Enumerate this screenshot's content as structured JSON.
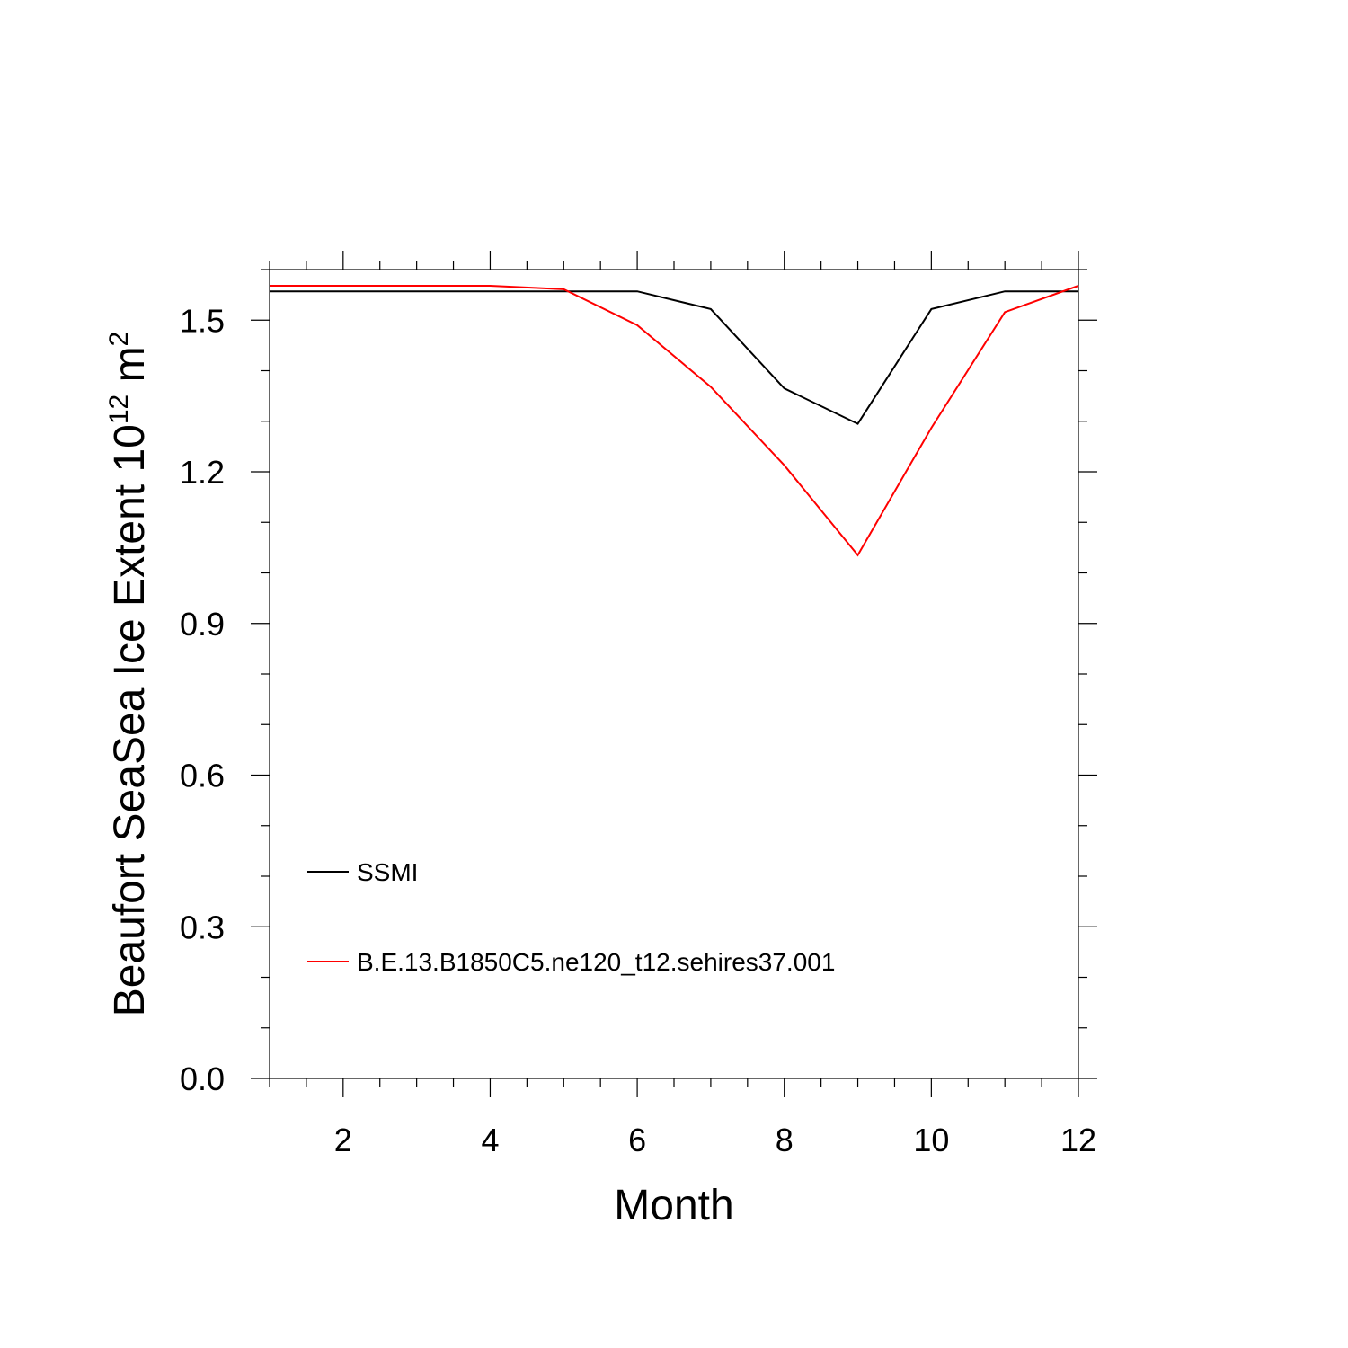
{
  "chart_data": {
    "type": "line",
    "xlabel": "Month",
    "ylabel_prefix": "Beaufort SeaSea Ice Extent 10",
    "ylabel_exponent": "12",
    "ylabel_unit": "m",
    "ylabel_unit_exponent": "2",
    "xlim": [
      1,
      12
    ],
    "ylim": [
      0.0,
      1.6
    ],
    "xticks": [
      2,
      4,
      6,
      8,
      10,
      12
    ],
    "xtick_labels": [
      "2",
      "4",
      "6",
      "8",
      "10",
      "12"
    ],
    "yticks": [
      0.0,
      0.3,
      0.6,
      0.9,
      1.2,
      1.5
    ],
    "ytick_labels": [
      "0.0",
      "0.3",
      "0.6",
      "0.9",
      "1.2",
      "1.5"
    ],
    "x": [
      1,
      2,
      3,
      4,
      5,
      6,
      7,
      8,
      9,
      10,
      11,
      12
    ],
    "series": [
      {
        "name": "SSMI",
        "color": "#000000",
        "values": [
          1.557,
          1.557,
          1.557,
          1.557,
          1.557,
          1.557,
          1.522,
          1.365,
          1.295,
          1.522,
          1.557,
          1.557
        ]
      },
      {
        "name": "B.E.13.B1850C5.ne120_t12.sehires37.001",
        "color": "#ff0000",
        "values": [
          1.568,
          1.568,
          1.568,
          1.568,
          1.561,
          1.49,
          1.368,
          1.213,
          1.035,
          1.287,
          1.516,
          1.568
        ]
      }
    ],
    "legend_position": "lower-left",
    "grid": false
  }
}
